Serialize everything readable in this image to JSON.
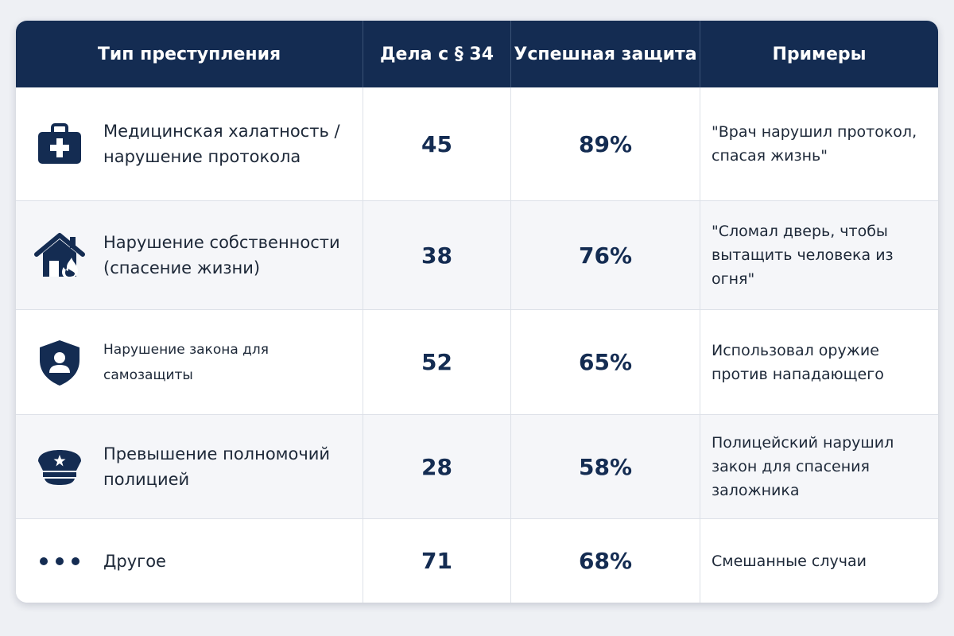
{
  "table": {
    "headers": {
      "type": "Тип преступления",
      "cases": "Дела с § 34",
      "success": "Успешная защита",
      "examples": "Примеры"
    },
    "rows": [
      {
        "icon": "medical-kit-icon",
        "type_line1": "Медицинская халатность /",
        "type_line2": "нарушение протокола",
        "cases": "45",
        "success": "89%",
        "example_line1": "\"Врач нарушил протокол,",
        "example_line2": "спасая жизнь\"",
        "example_line3": ""
      },
      {
        "icon": "house-fire-icon",
        "type_line1": "Нарушение собственности",
        "type_line2": "(спасение жизни)",
        "cases": "38",
        "success": "76%",
        "example_line1": "\"Сломал дверь, чтобы",
        "example_line2": "вытащить человека из огня\"",
        "example_line3": ""
      },
      {
        "icon": "shield-person-icon",
        "type_line1": "Нарушение закона для самозащиты",
        "type_line2": "",
        "cases": "52",
        "success": "65%",
        "example_line1": "Использовал оружие",
        "example_line2": "против нападающего",
        "example_line3": ""
      },
      {
        "icon": "police-cap-icon",
        "type_line1": "Превышение полномочий",
        "type_line2": "полицией",
        "cases": "28",
        "success": "58%",
        "example_line1": "Полицейский нарушил",
        "example_line2": "закон для спасения",
        "example_line3": "заложника"
      },
      {
        "icon": "more-dots-icon",
        "type_line1": "Другое",
        "type_line2": "",
        "cases": "71",
        "success": "68%",
        "example_line1": "Смешанные случаи",
        "example_line2": "",
        "example_line3": ""
      }
    ]
  },
  "colors": {
    "header_bg": "#142c52",
    "icon": "#142c52",
    "row_alt_bg": "#f5f6f9"
  }
}
